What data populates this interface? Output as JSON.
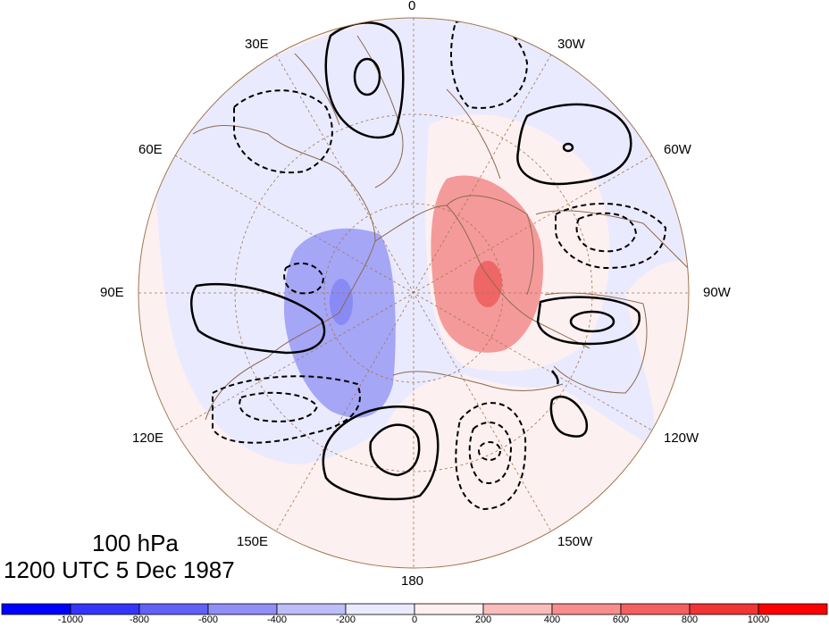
{
  "map": {
    "projection": "north polar stereographic",
    "longitude_labels": [
      "0",
      "30W",
      "60W",
      "90W",
      "120W",
      "150W",
      "180",
      "150E",
      "120E",
      "90E",
      "60E",
      "30E"
    ],
    "level_label": "100 hPa",
    "time_label": "1200 UTC 5 Dec 1987",
    "colorbar": {
      "tick_labels": [
        "-1000",
        "-800",
        "-600",
        "-400",
        "-200",
        "0",
        "200",
        "400",
        "600",
        "800",
        "1000"
      ],
      "colors": [
        "#0000ff",
        "#3535fa",
        "#6161f7",
        "#8f8ff5",
        "#bdbdfa",
        "#eaeaff",
        "#fff0f0",
        "#fbbcbc",
        "#f78d8d",
        "#f55f5f",
        "#f03535",
        "#ff0000"
      ]
    },
    "shading": {
      "background_negative": "#eaeaff",
      "background_positive": "#fdf0f0",
      "blue_center": "#8a8af5",
      "blue_mid": "#a6a6f7",
      "red_mid": "#f59a9a",
      "red_center": "#ee6666"
    }
  }
}
